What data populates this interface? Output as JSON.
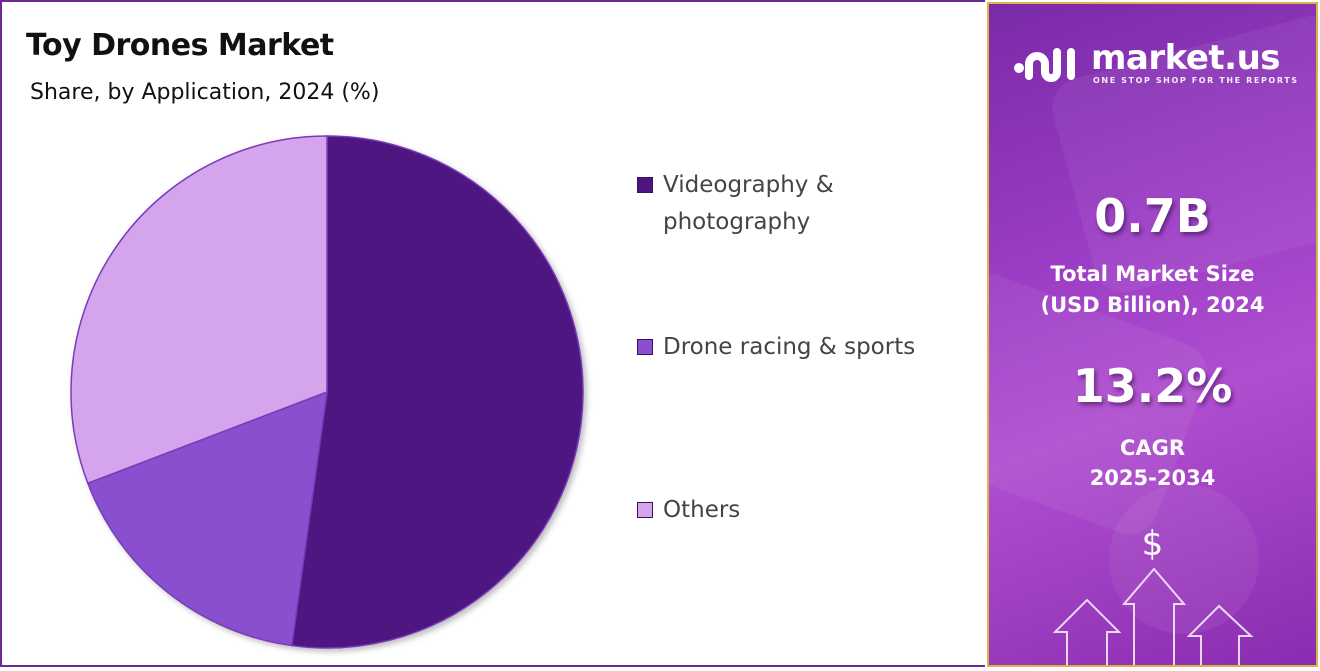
{
  "chart_data": {
    "type": "pie",
    "title": "Toy Drones Market",
    "subtitle": "Share, by Application, 2024 (%)",
    "categories": [
      "Videography & photography",
      "Drone racing & sports",
      "Others"
    ],
    "values": [
      52.2,
      17.0,
      30.8
    ],
    "colors": [
      "#4e1580",
      "#8a4fcf",
      "#d4a5ec"
    ],
    "legend_position": "right"
  },
  "legend": {
    "items": [
      {
        "line1": "Videography &",
        "line2": "photography"
      },
      {
        "line1": "Drone racing & sports"
      },
      {
        "line1": "Others"
      }
    ]
  },
  "sidebar": {
    "brand": "market.us",
    "tagline": "ONE STOP SHOP FOR THE REPORTS",
    "market_size_value": "0.7B",
    "market_size_label1": "Total Market Size",
    "market_size_label2": "(USD Billion), 2024",
    "cagr_value": "13.2%",
    "cagr_label1": "CAGR",
    "cagr_label2": "2025-2034",
    "currency_symbol": "$",
    "icons": [
      "logo-icon",
      "arrow-up-icon"
    ]
  }
}
